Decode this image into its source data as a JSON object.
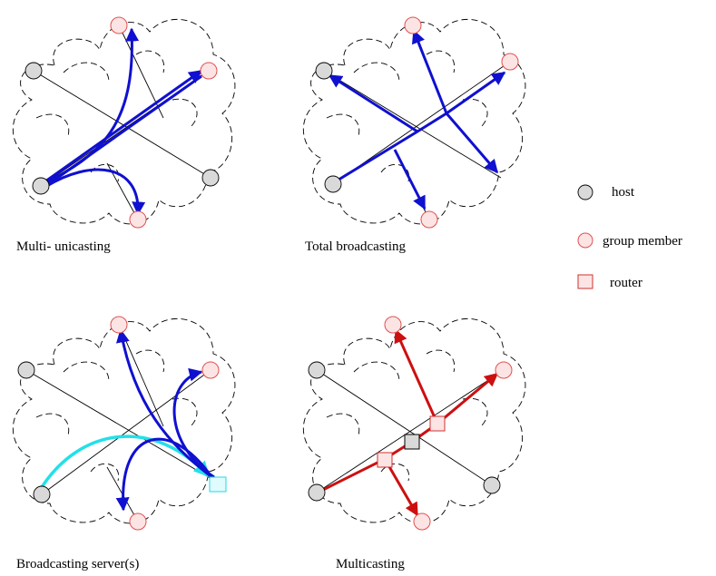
{
  "colors": {
    "host_fill": "#d9d9d9",
    "member_fill": "#fde4e4",
    "member_stroke": "#e05050",
    "router_fill": "#fde4e4",
    "router_stroke": "#d03030",
    "center_router_fill": "#d9d9d9",
    "unicast_arrow": "#1010d0",
    "broadcast_arrow": "#1010d0",
    "server_broadcast_arrow": "#1010d0",
    "server_upload_arrow": "#22e0ea",
    "server_fill": "#e0fbfd",
    "server_stroke": "#22d8e4",
    "multicast_arrow": "#cc1010"
  },
  "panels": [
    {
      "id": "multi-unicasting",
      "caption": "Multi- unicasting"
    },
    {
      "id": "total-broadcasting",
      "caption": "Total broadcasting"
    },
    {
      "id": "broadcasting-server",
      "caption": "Broadcasting server(s)"
    },
    {
      "id": "multicasting",
      "caption": "Multicasting"
    }
  ],
  "legend": [
    {
      "shape": "host",
      "label": "host"
    },
    {
      "shape": "group-member",
      "label": "group member"
    },
    {
      "shape": "router",
      "label": "router"
    }
  ]
}
